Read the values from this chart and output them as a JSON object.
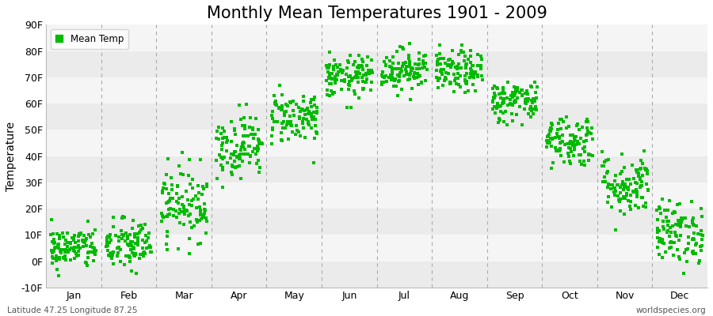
{
  "title": "Monthly Mean Temperatures 1901 - 2009",
  "ylabel": "Temperature",
  "ylim": [
    -10,
    90
  ],
  "yticks": [
    -10,
    0,
    10,
    20,
    30,
    40,
    50,
    60,
    70,
    80,
    90
  ],
  "ytick_labels": [
    "-10F",
    "0F",
    "10F",
    "20F",
    "30F",
    "40F",
    "50F",
    "60F",
    "70F",
    "80F",
    "90F"
  ],
  "months": [
    "Jan",
    "Feb",
    "Mar",
    "Apr",
    "May",
    "Jun",
    "Jul",
    "Aug",
    "Sep",
    "Oct",
    "Nov",
    "Dec"
  ],
  "month_means": [
    5,
    6,
    22,
    44,
    55,
    70,
    73,
    72,
    61,
    46,
    29,
    11
  ],
  "month_stds": [
    4,
    5,
    7,
    6,
    5,
    4,
    4,
    4,
    4,
    5,
    6,
    6
  ],
  "dot_color": "#00bb00",
  "dot_size": 5,
  "n_years": 109,
  "background_color": "#ffffff",
  "band_colors": [
    "#ebebeb",
    "#f5f5f5",
    "#ebebeb",
    "#f5f5f5",
    "#ebebeb",
    "#f5f5f5",
    "#ebebeb",
    "#f5f5f5",
    "#ebebeb",
    "#f5f5f5"
  ],
  "grid_line_color": "#aaaaaa",
  "title_fontsize": 15,
  "axis_label_fontsize": 10,
  "tick_fontsize": 9,
  "bottom_left_text": "Latitude 47.25 Longitude 87.25",
  "bottom_right_text": "worldspecies.org",
  "legend_label": "Mean Temp"
}
